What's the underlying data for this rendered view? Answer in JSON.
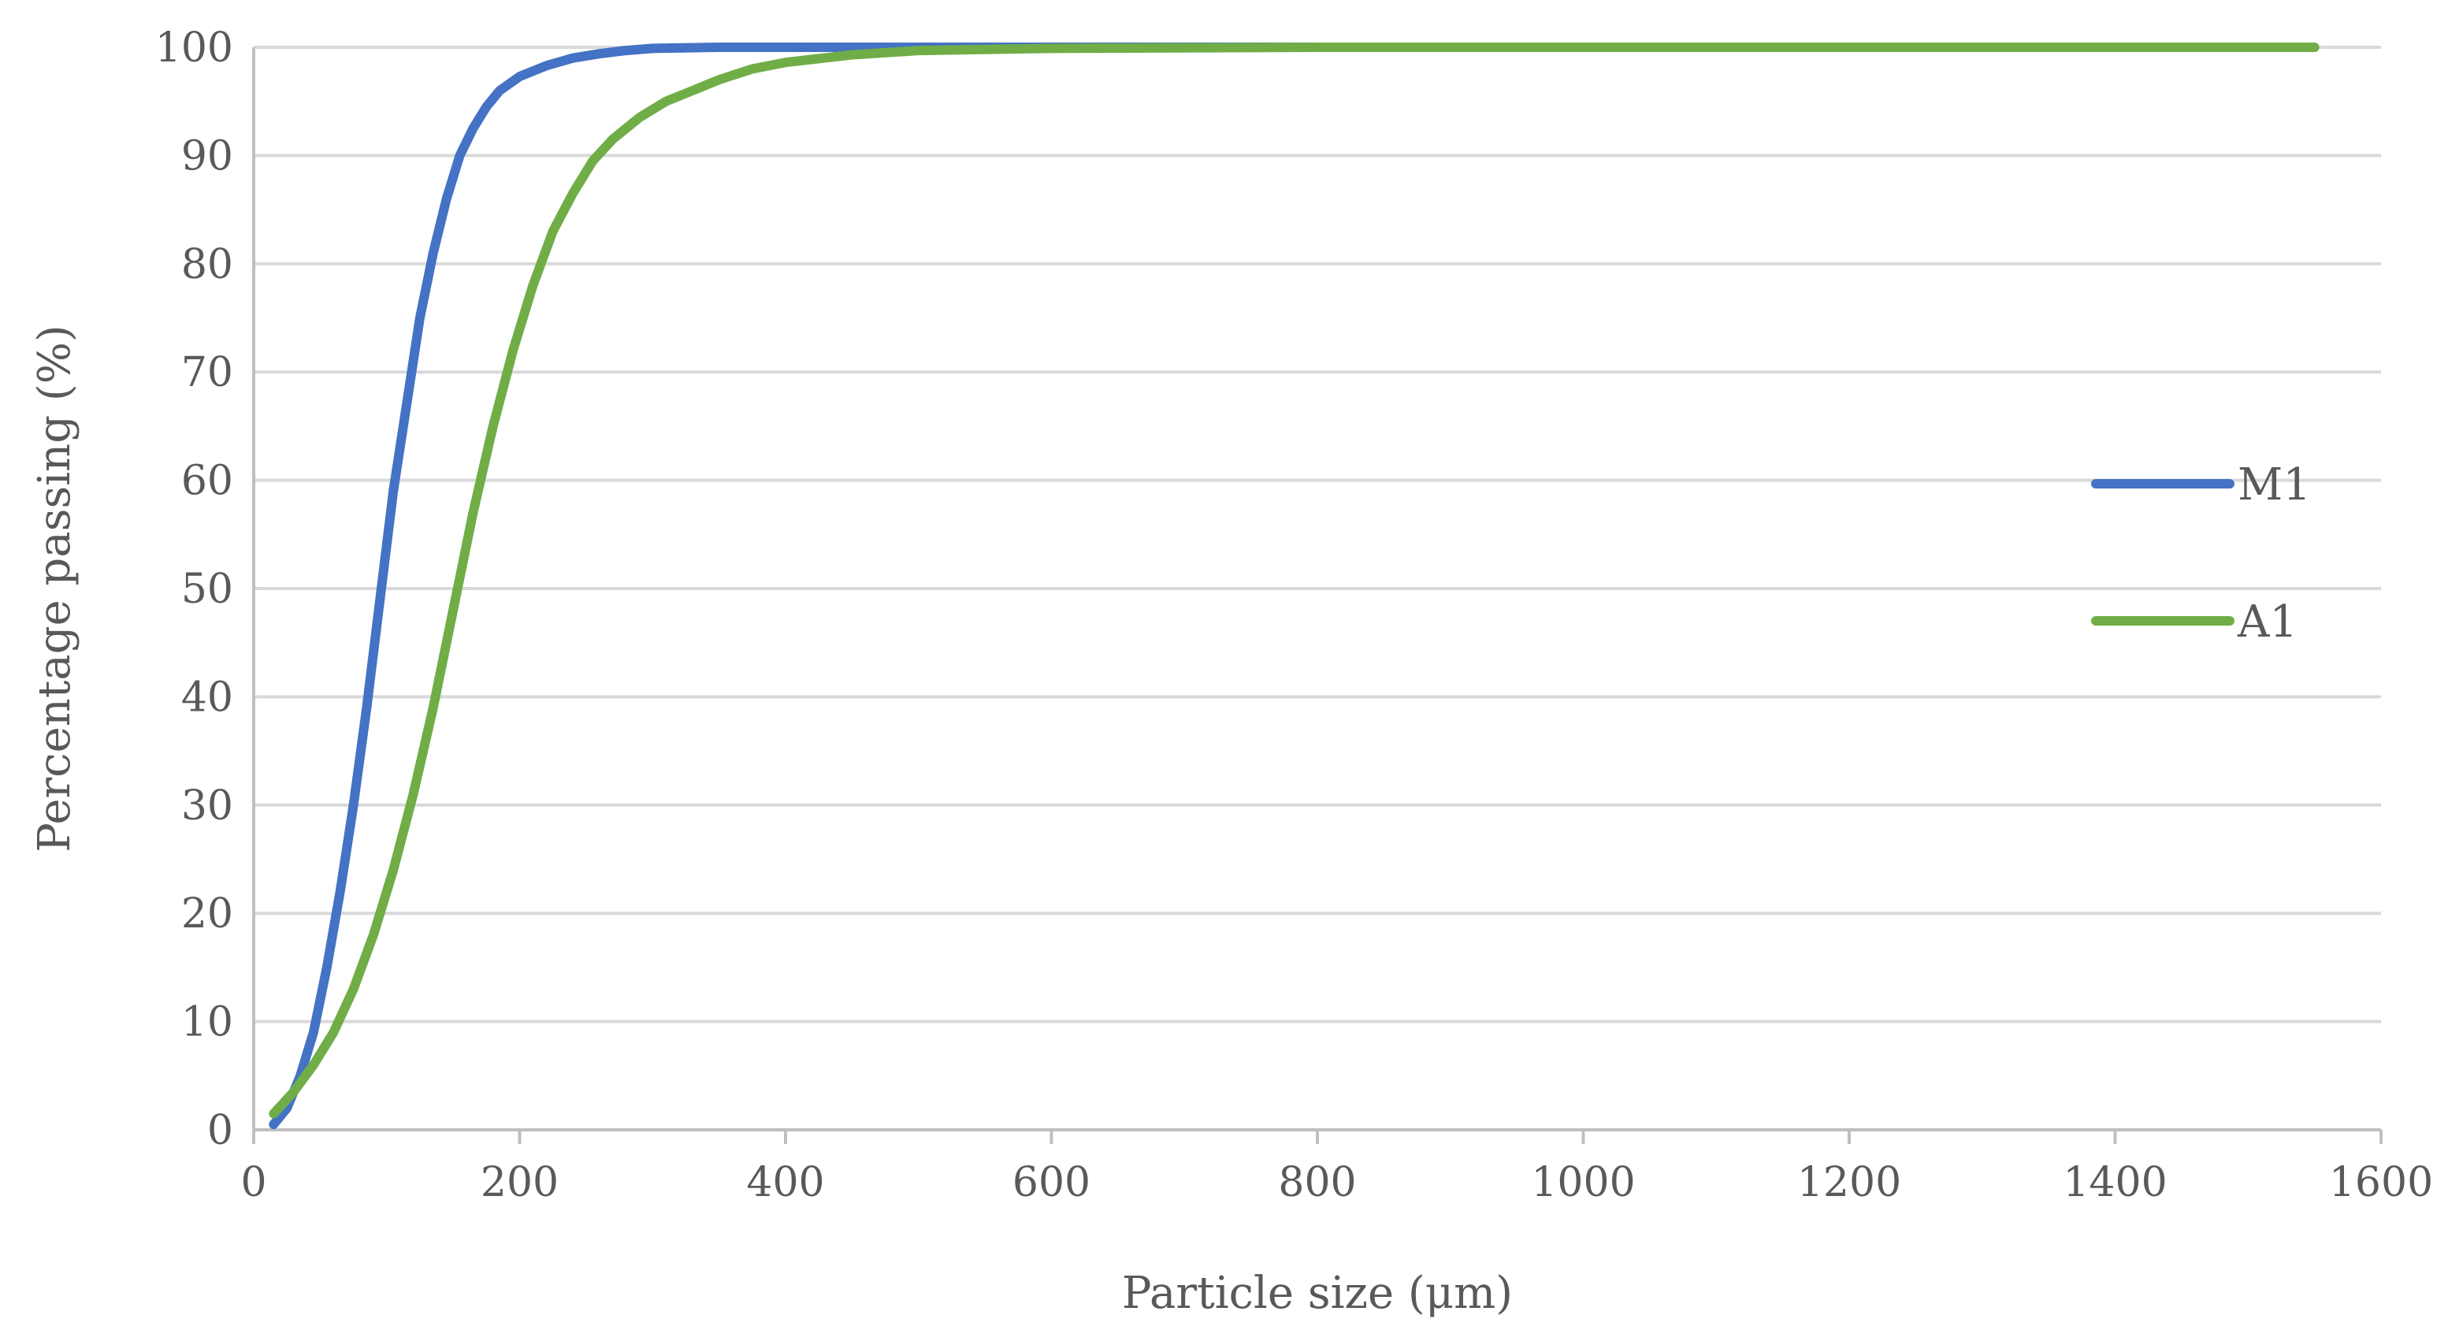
{
  "chart_data": {
    "type": "line",
    "title": "",
    "xlabel": "Particle size (μm)",
    "ylabel": "Percentage passing (%)",
    "xlim": [
      0,
      1600
    ],
    "ylim": [
      0,
      100
    ],
    "xticks": [
      0,
      200,
      400,
      600,
      800,
      1000,
      1200,
      1400,
      1600
    ],
    "yticks": [
      0,
      10,
      20,
      30,
      40,
      50,
      60,
      70,
      80,
      90,
      100
    ],
    "grid": "horizontal",
    "legend": "right",
    "series": [
      {
        "name": "M1",
        "color": "#4472c4",
        "x": [
          15,
          25,
          35,
          45,
          55,
          65,
          75,
          85,
          95,
          105,
          115,
          125,
          135,
          145,
          155,
          165,
          175,
          185,
          200,
          220,
          240,
          260,
          280,
          300,
          350,
          400,
          500,
          600,
          800,
          1000,
          1550
        ],
        "y": [
          0.5,
          2,
          5,
          9,
          15,
          22,
          30,
          39,
          49,
          59,
          67,
          75,
          81,
          86,
          90,
          92.5,
          94.5,
          96,
          97.3,
          98.3,
          99,
          99.4,
          99.7,
          99.9,
          100,
          100,
          100,
          100,
          100,
          100,
          100
        ]
      },
      {
        "name": "A1",
        "color": "#70ad47",
        "x": [
          15,
          30,
          45,
          60,
          75,
          90,
          105,
          120,
          135,
          150,
          165,
          180,
          195,
          210,
          225,
          240,
          255,
          270,
          290,
          310,
          330,
          350,
          375,
          400,
          450,
          500,
          600,
          800,
          1000,
          1200,
          1550
        ],
        "y": [
          1.5,
          3.5,
          6,
          9,
          13,
          18,
          24,
          31,
          39,
          48,
          57,
          65,
          72,
          78,
          83,
          86.5,
          89.5,
          91.5,
          93.5,
          95,
          96,
          97,
          98,
          98.6,
          99.3,
          99.7,
          99.9,
          100,
          100,
          100,
          100
        ]
      }
    ]
  }
}
